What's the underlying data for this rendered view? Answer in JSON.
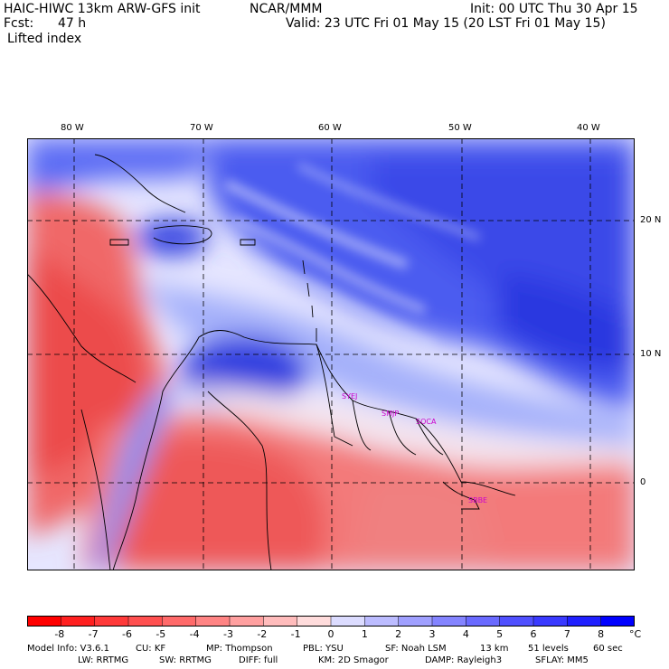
{
  "header": {
    "model": "HAIC-HIWC 13km ARW-GFS init",
    "org": "NCAR/MMM",
    "init": "Init: 00 UTC Thu 30 Apr 15",
    "fcst_label": "Fcst:",
    "fcst_value": "47 h",
    "valid": "Valid: 23 UTC Fri 01 May 15 (20 LST Fri 01 May 15)",
    "field": "Lifted index"
  },
  "map": {
    "lon_labels": [
      "80 W",
      "70 W",
      "60 W",
      "50 W",
      "40 W"
    ],
    "lat_labels": [
      "20 N",
      "10 N",
      "0"
    ],
    "stations": [
      "SYEJ",
      "SMJP",
      "SOCA",
      "SBBE"
    ]
  },
  "colorbar": {
    "ticks": [
      "-8",
      "-7",
      "-6",
      "-5",
      "-4",
      "-3",
      "-2",
      "-1",
      "0",
      "1",
      "2",
      "3",
      "4",
      "5",
      "6",
      "7",
      "8"
    ],
    "unit": "°C",
    "colors": [
      "#ff0000",
      "#ff2020",
      "#ff3a3a",
      "#ff5050",
      "#ff6a6a",
      "#ff8484",
      "#ffa0a0",
      "#ffbcbc",
      "#ffdcdc",
      "#dcdcff",
      "#bcbcff",
      "#a0a0ff",
      "#8484ff",
      "#6a6aff",
      "#5050ff",
      "#3a3aff",
      "#2020ff",
      "#0000ff"
    ]
  },
  "footer": {
    "line1": [
      "Model Info: V3.6.1",
      "CU: KF",
      "MP: Thompson",
      "PBL: YSU",
      "SF: Noah LSM",
      "13 km",
      "51 levels",
      "60 sec"
    ],
    "line2": [
      "LW: RRTMG",
      "SW: RRTMG",
      "DIFF: full",
      "KM: 2D Smagor",
      "DAMP: Rayleigh3",
      "SFLAY: MM5"
    ]
  }
}
